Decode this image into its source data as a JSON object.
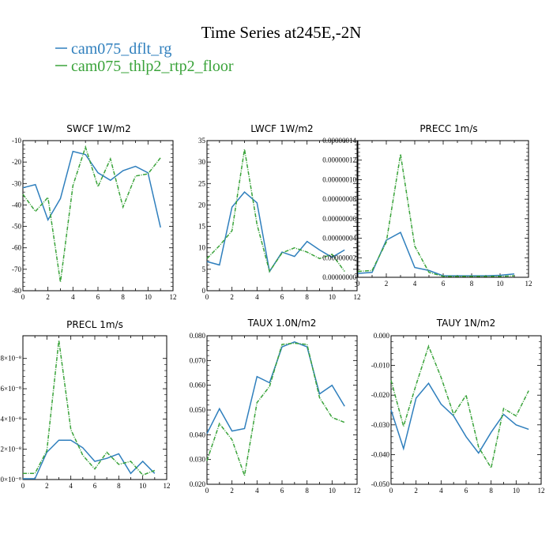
{
  "figure": {
    "title": "Time Series at245E,-2N",
    "legend": [
      {
        "label": "cam075_dflt_rg",
        "color": "#2f7fbd"
      },
      {
        "label": "cam075_thlp2_rtp2_floor",
        "color": "#3aa33a"
      }
    ]
  },
  "chart_data": [
    {
      "type": "line",
      "title": "SWCF   1W/m2",
      "x": [
        0,
        1,
        2,
        3,
        4,
        5,
        6,
        7,
        8,
        9,
        10,
        11
      ],
      "xlim": [
        0,
        12
      ],
      "xticks": [
        "0",
        "2",
        "4",
        "6",
        "8",
        "10",
        "12"
      ],
      "ylim": [
        -80,
        -10
      ],
      "yticks": [
        {
          "v": -10,
          "label": "-10"
        },
        {
          "v": -20,
          "label": "-20"
        },
        {
          "v": -30,
          "label": "-30"
        },
        {
          "v": -40,
          "label": "-40"
        },
        {
          "v": -50,
          "label": "-50"
        },
        {
          "v": -60,
          "label": "-60"
        },
        {
          "v": -70,
          "label": "-70"
        },
        {
          "v": -80,
          "label": "-80"
        }
      ],
      "series": [
        {
          "name": "cam075_dflt_rg",
          "color": "#2f7fbd",
          "dashed": false,
          "values": [
            -32,
            -30.5,
            -47,
            -37,
            -15,
            -16.5,
            -25,
            -28.5,
            -24,
            -22,
            -25,
            -50.5
          ]
        },
        {
          "name": "cam075_thlp2_rtp2_floor",
          "color": "#3aa33a",
          "dashed": true,
          "values": [
            -35,
            -43,
            -36.5,
            -76,
            -31,
            -13,
            -31.5,
            -18.5,
            -41,
            -26.5,
            -25.5,
            -18
          ]
        }
      ]
    },
    {
      "type": "line",
      "title": "LWCF   1W/m2",
      "x": [
        0,
        1,
        2,
        3,
        4,
        5,
        6,
        7,
        8,
        9,
        10,
        11
      ],
      "xlim": [
        0,
        12
      ],
      "xticks": [
        "0",
        "2",
        "4",
        "6",
        "8",
        "10",
        "12"
      ],
      "ylim": [
        0,
        35
      ],
      "yticks": [
        {
          "v": 0,
          "label": "0"
        },
        {
          "v": 5,
          "label": "5"
        },
        {
          "v": 10,
          "label": "10"
        },
        {
          "v": 15,
          "label": "15"
        },
        {
          "v": 20,
          "label": "20"
        },
        {
          "v": 25,
          "label": "25"
        },
        {
          "v": 30,
          "label": "30"
        },
        {
          "v": 35,
          "label": "35"
        }
      ],
      "series": [
        {
          "name": "cam075_dflt_rg",
          "color": "#2f7fbd",
          "dashed": false,
          "values": [
            6.8,
            6,
            19.5,
            23,
            20.5,
            4.5,
            9,
            8,
            11.5,
            9.5,
            7.8,
            9.5
          ]
        },
        {
          "name": "cam075_thlp2_rtp2_floor",
          "color": "#3aa33a",
          "dashed": true,
          "values": [
            7.5,
            10.5,
            14,
            33,
            15.5,
            4.5,
            8.8,
            10,
            9,
            7.5,
            8.5,
            4.5
          ]
        }
      ]
    },
    {
      "type": "line",
      "title": "PRECC   1m/s",
      "x": [
        0,
        1,
        2,
        3,
        4,
        5,
        6,
        7,
        8,
        9,
        10,
        11
      ],
      "xlim": [
        0,
        12
      ],
      "xticks": [
        "0",
        "2",
        "4",
        "6",
        "8",
        "10",
        "12"
      ],
      "ylim": [
        0,
        1.4e-07
      ],
      "yticks": [
        {
          "v": 0,
          "label": "0.00000000"
        },
        {
          "v": 2e-08,
          "label": "0.00000002"
        },
        {
          "v": 4e-08,
          "label": "0.00000004"
        },
        {
          "v": 6e-08,
          "label": "0.00000006"
        },
        {
          "v": 8e-08,
          "label": "0.00000008"
        },
        {
          "v": 1e-07,
          "label": "0.00000010"
        },
        {
          "v": 1.2e-07,
          "label": "0.00000012"
        },
        {
          "v": 1.4e-07,
          "label": "0.00000014"
        }
      ],
      "series": [
        {
          "name": "cam075_dflt_rg",
          "color": "#2f7fbd",
          "dashed": false,
          "values": [
            4e-09,
            5e-09,
            3.8e-08,
            4.6e-08,
            1e-08,
            7e-09,
            1.5e-09,
            1.5e-09,
            1.5e-09,
            1.5e-09,
            2e-09,
            3.5e-09
          ]
        },
        {
          "name": "cam075_thlp2_rtp2_floor",
          "color": "#3aa33a",
          "dashed": true,
          "values": [
            6e-09,
            7e-09,
            3.6e-08,
            1.26e-07,
            3.2e-08,
            5e-09,
            1e-09,
            1e-09,
            1e-09,
            1e-09,
            1e-09,
            1.5e-09
          ]
        }
      ]
    },
    {
      "type": "line",
      "title": "PRECL   1m/s",
      "x": [
        0,
        1,
        2,
        3,
        4,
        5,
        6,
        7,
        8,
        9,
        10,
        11
      ],
      "xlim": [
        0,
        12
      ],
      "xticks": [
        "0",
        "2",
        "4",
        "6",
        "8",
        "10",
        "12"
      ],
      "ylim": [
        0,
        9.5
      ],
      "yticks": [
        {
          "v": 0,
          "label": "0×10⁻⁸"
        },
        {
          "v": 2,
          "label": "2×10⁻⁸"
        },
        {
          "v": 4,
          "label": "4×10⁻⁸"
        },
        {
          "v": 6,
          "label": "6×10⁻⁸"
        },
        {
          "v": 8,
          "label": "8×10⁻⁸"
        }
      ],
      "series": [
        {
          "name": "cam075_dflt_rg",
          "color": "#2f7fbd",
          "dashed": false,
          "values": [
            0.05,
            0.05,
            1.8,
            2.6,
            2.6,
            2.1,
            1.2,
            1.4,
            1.7,
            0.4,
            1.2,
            0.4
          ]
        },
        {
          "name": "cam075_thlp2_rtp2_floor",
          "color": "#3aa33a",
          "dashed": true,
          "values": [
            0.4,
            0.4,
            1.9,
            9.2,
            3.3,
            1.6,
            0.7,
            1.8,
            1.0,
            1.2,
            0.3,
            0.6
          ]
        }
      ]
    },
    {
      "type": "line",
      "title": "TAUX   1.0N/m2",
      "x": [
        0,
        1,
        2,
        3,
        4,
        5,
        6,
        7,
        8,
        9,
        10,
        11
      ],
      "xlim": [
        0,
        12
      ],
      "xticks": [
        "0",
        "2",
        "4",
        "6",
        "8",
        "10",
        "12"
      ],
      "ylim": [
        0.02,
        0.08
      ],
      "yticks": [
        {
          "v": 0.02,
          "label": "0.020"
        },
        {
          "v": 0.03,
          "label": "0.030"
        },
        {
          "v": 0.04,
          "label": "0.040"
        },
        {
          "v": 0.05,
          "label": "0.050"
        },
        {
          "v": 0.06,
          "label": "0.060"
        },
        {
          "v": 0.07,
          "label": "0.070"
        },
        {
          "v": 0.08,
          "label": "0.080"
        }
      ],
      "series": [
        {
          "name": "cam075_dflt_rg",
          "color": "#2f7fbd",
          "dashed": false,
          "values": [
            0.0405,
            0.0505,
            0.0415,
            0.0425,
            0.0635,
            0.061,
            0.0755,
            0.0775,
            0.0755,
            0.0565,
            0.06,
            0.0515
          ]
        },
        {
          "name": "cam075_thlp2_rtp2_floor",
          "color": "#3aa33a",
          "dashed": true,
          "values": [
            0.0295,
            0.0445,
            0.038,
            0.0235,
            0.053,
            0.0595,
            0.0765,
            0.077,
            0.0765,
            0.055,
            0.047,
            0.045
          ]
        }
      ]
    },
    {
      "type": "line",
      "title": "TAUY   1N/m2",
      "x": [
        0,
        1,
        2,
        3,
        4,
        5,
        6,
        7,
        8,
        9,
        10,
        11
      ],
      "xlim": [
        0,
        12
      ],
      "xticks": [
        "0",
        "2",
        "4",
        "6",
        "8",
        "10",
        "12"
      ],
      "ylim": [
        -0.05,
        0.0
      ],
      "yticks": [
        {
          "v": 0,
          "label": "0.000"
        },
        {
          "v": -0.01,
          "label": "-0.010"
        },
        {
          "v": -0.02,
          "label": "-0.020"
        },
        {
          "v": -0.03,
          "label": "-0.030"
        },
        {
          "v": -0.04,
          "label": "-0.040"
        },
        {
          "v": -0.05,
          "label": "-0.050"
        }
      ],
      "series": [
        {
          "name": "cam075_dflt_rg",
          "color": "#2f7fbd",
          "dashed": false,
          "values": [
            -0.025,
            -0.038,
            -0.021,
            -0.016,
            -0.023,
            -0.027,
            -0.034,
            -0.0395,
            -0.0325,
            -0.0265,
            -0.03,
            -0.0315
          ]
        },
        {
          "name": "cam075_thlp2_rtp2_floor",
          "color": "#3aa33a",
          "dashed": true,
          "values": [
            -0.015,
            -0.0305,
            -0.0165,
            -0.0035,
            -0.014,
            -0.0265,
            -0.02,
            -0.0375,
            -0.0445,
            -0.0245,
            -0.027,
            -0.0185
          ]
        }
      ]
    }
  ]
}
